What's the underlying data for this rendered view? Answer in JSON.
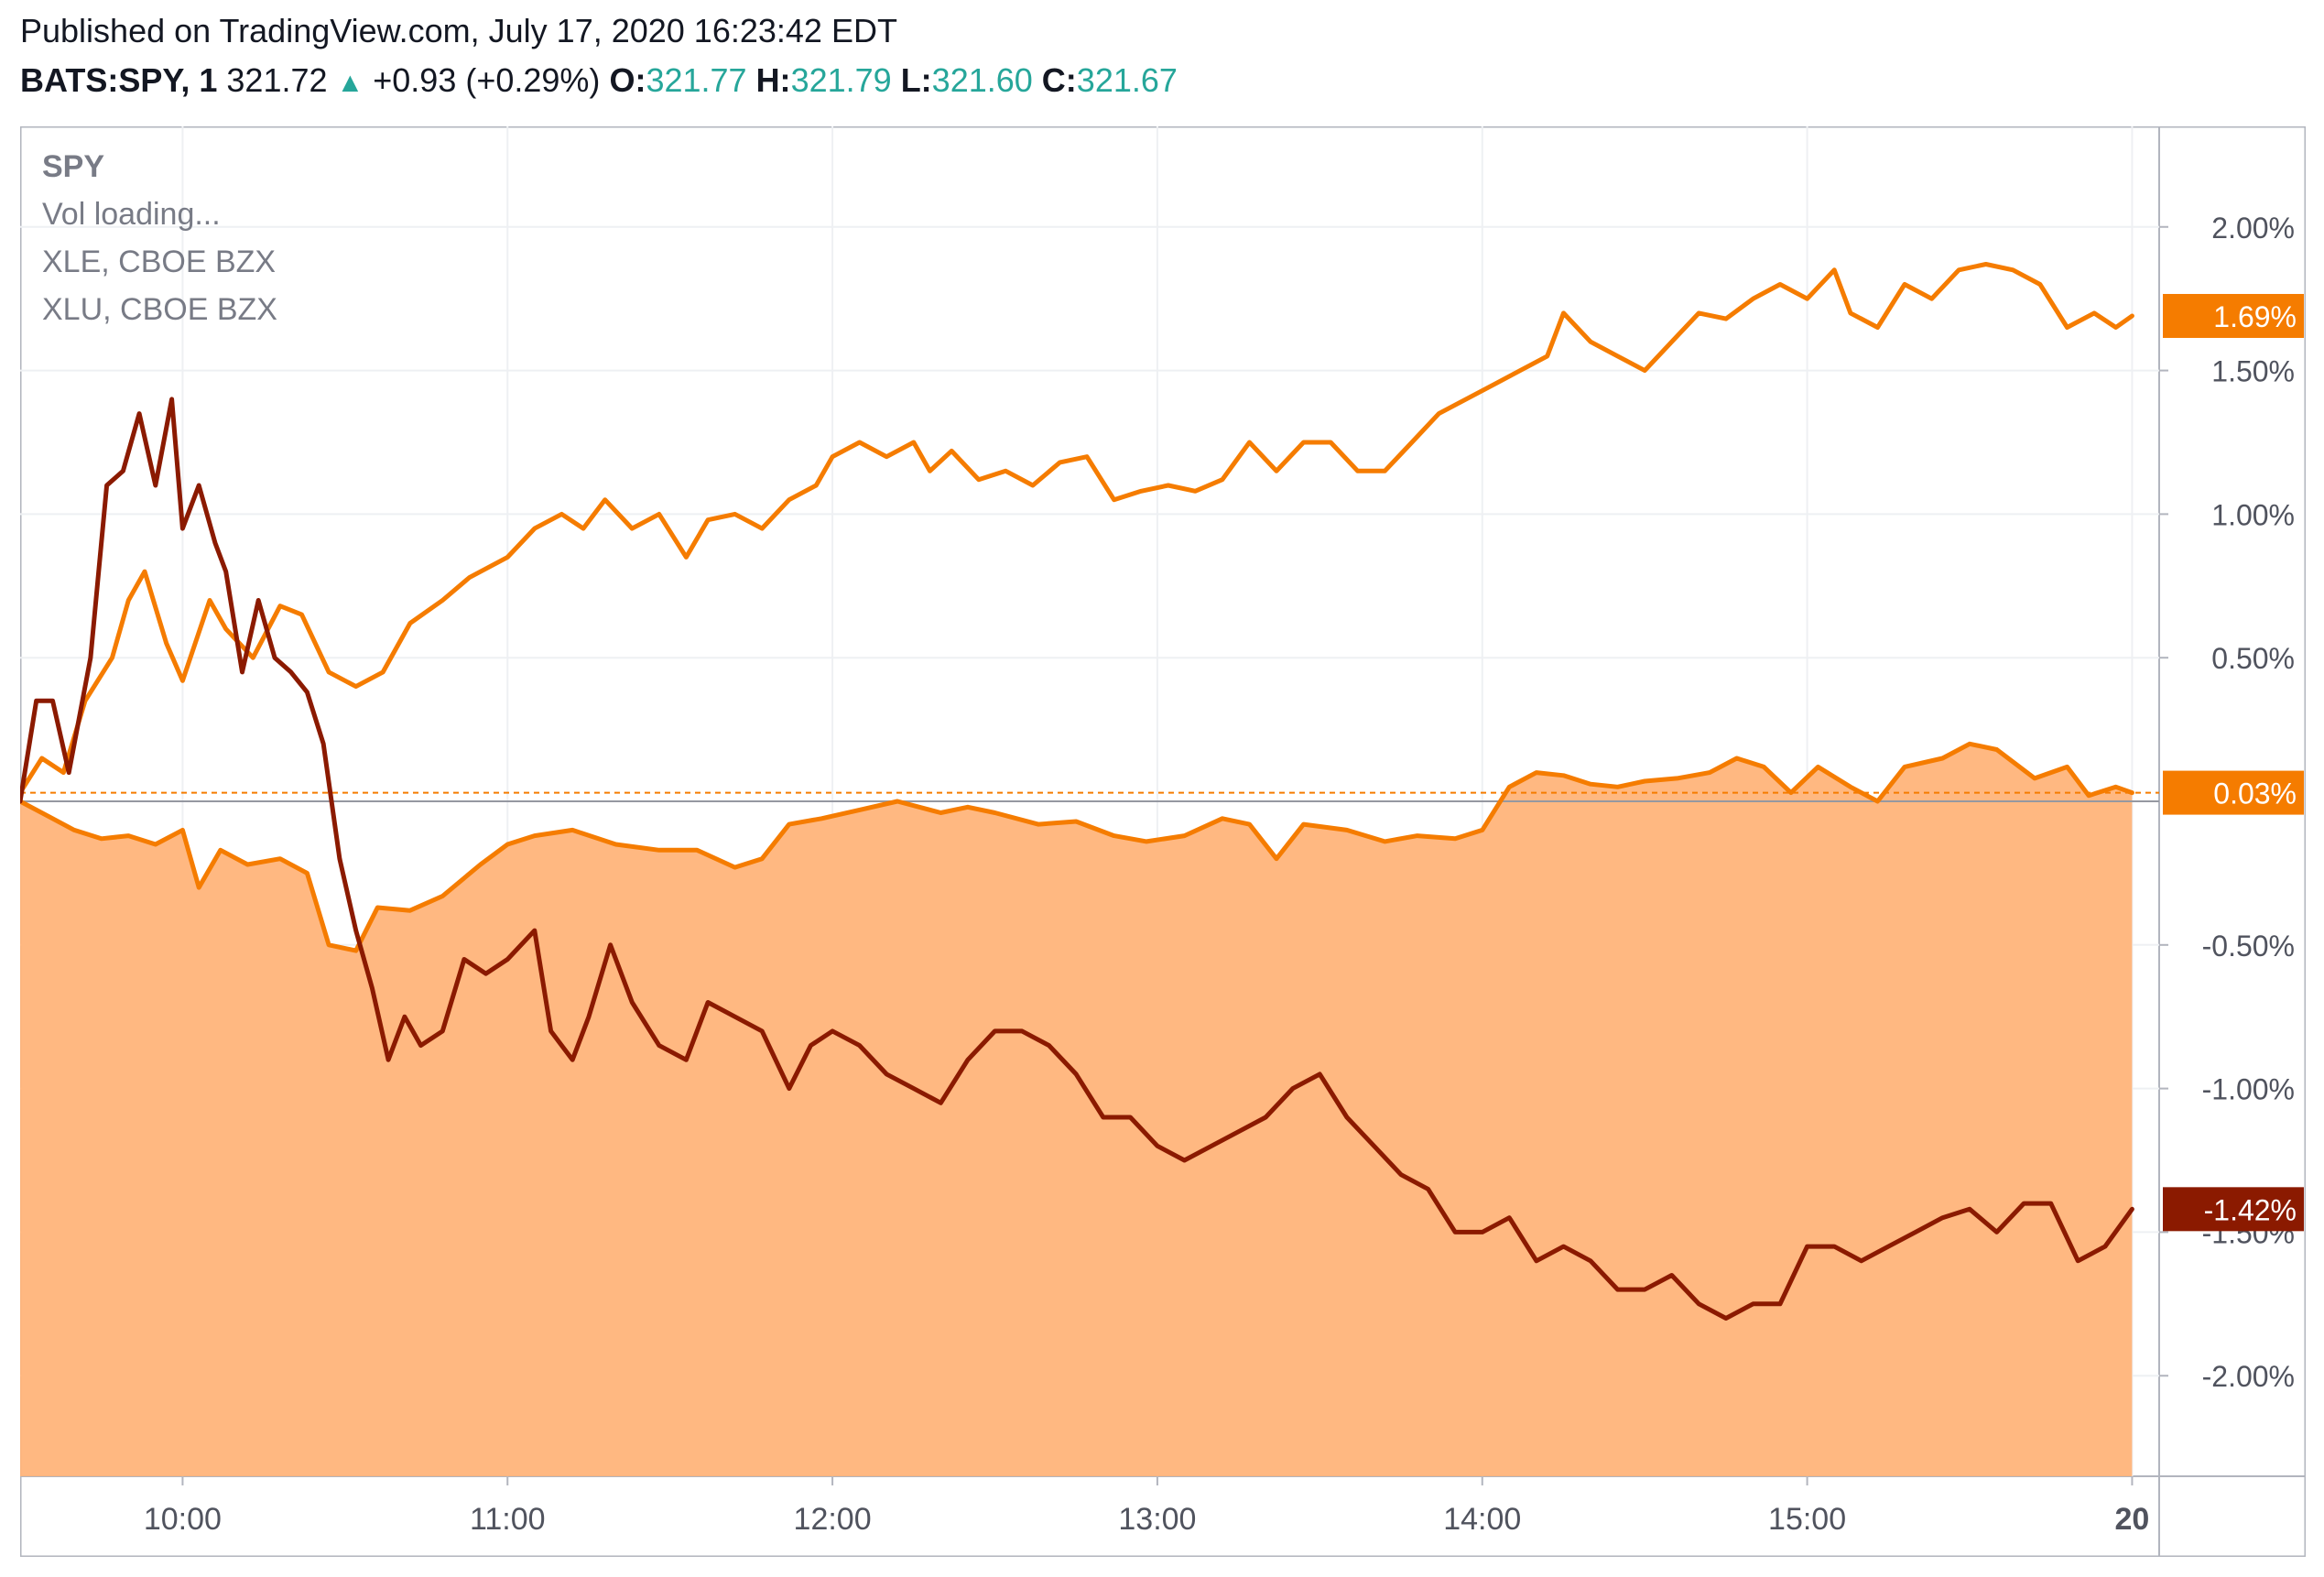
{
  "header": {
    "published": "Published on TradingView.com, July 17, 2020 16:23:42 EDT",
    "symbol": "BATS:SPY, 1",
    "last": "321.72",
    "change": "+0.93 (+0.29%)",
    "open_label": "O:",
    "open": "321.77",
    "high_label": "H:",
    "high": "321.79",
    "low_label": "L:",
    "low": "321.60",
    "close_label": "C:",
    "close": "321.67"
  },
  "legend": {
    "main": "SPY",
    "vol": "Vol loading...",
    "s2": "XLE, CBOE BZX",
    "s3": "XLU, CBOE BZX"
  },
  "colors": {
    "spy_line": "#f57c00",
    "spy_area": "#ffb47a",
    "xle_line": "#8b1a00",
    "xlu_line": "#c8601e",
    "xlu_upper_line": "#f57c00",
    "grid": "#eef0f3",
    "axis_text": "#50535e"
  },
  "chart_data": {
    "type": "line",
    "y_unit": "%",
    "ylim": [
      -2.35,
      2.35
    ],
    "yticks": [
      "2.00%",
      "1.50%",
      "1.00%",
      "0.50%",
      "-0.50%",
      "-1.00%",
      "-1.50%",
      "-2.00%"
    ],
    "ytick_values": [
      2.0,
      1.5,
      1.0,
      0.5,
      -0.5,
      -1.0,
      -1.5,
      -2.0
    ],
    "xlim": [
      "09:30",
      "16:05"
    ],
    "xticks": [
      "10:00",
      "11:00",
      "12:00",
      "13:00",
      "14:00",
      "15:00",
      "20"
    ],
    "xtick_times": [
      "10:00",
      "11:00",
      "12:00",
      "13:00",
      "14:00",
      "15:00",
      "16:00"
    ],
    "grid": true,
    "series": [
      {
        "name": "SPY",
        "style": "area",
        "last_label": "0.03%",
        "points": [
          [
            "09:30",
            0.0
          ],
          [
            "09:35",
            -0.05
          ],
          [
            "09:40",
            -0.1
          ],
          [
            "09:45",
            -0.13
          ],
          [
            "09:50",
            -0.12
          ],
          [
            "09:55",
            -0.15
          ],
          [
            "10:00",
            -0.1
          ],
          [
            "10:03",
            -0.3
          ],
          [
            "10:07",
            -0.17
          ],
          [
            "10:12",
            -0.22
          ],
          [
            "10:18",
            -0.2
          ],
          [
            "10:23",
            -0.25
          ],
          [
            "10:27",
            -0.5
          ],
          [
            "10:32",
            -0.52
          ],
          [
            "10:36",
            -0.37
          ],
          [
            "10:42",
            -0.38
          ],
          [
            "10:48",
            -0.33
          ],
          [
            "10:55",
            -0.22
          ],
          [
            "11:00",
            -0.15
          ],
          [
            "11:05",
            -0.12
          ],
          [
            "11:12",
            -0.1
          ],
          [
            "11:20",
            -0.15
          ],
          [
            "11:28",
            -0.17
          ],
          [
            "11:35",
            -0.17
          ],
          [
            "11:42",
            -0.23
          ],
          [
            "11:47",
            -0.2
          ],
          [
            "11:52",
            -0.08
          ],
          [
            "11:58",
            -0.06
          ],
          [
            "12:05",
            -0.03
          ],
          [
            "12:12",
            0.0
          ],
          [
            "12:20",
            -0.04
          ],
          [
            "12:25",
            -0.02
          ],
          [
            "12:30",
            -0.04
          ],
          [
            "12:38",
            -0.08
          ],
          [
            "12:45",
            -0.07
          ],
          [
            "12:52",
            -0.12
          ],
          [
            "12:58",
            -0.14
          ],
          [
            "13:05",
            -0.12
          ],
          [
            "13:12",
            -0.06
          ],
          [
            "13:17",
            -0.08
          ],
          [
            "13:22",
            -0.2
          ],
          [
            "13:27",
            -0.08
          ],
          [
            "13:35",
            -0.1
          ],
          [
            "13:42",
            -0.14
          ],
          [
            "13:48",
            -0.12
          ],
          [
            "13:55",
            -0.13
          ],
          [
            "14:00",
            -0.1
          ],
          [
            "14:05",
            0.05
          ],
          [
            "14:10",
            0.1
          ],
          [
            "14:15",
            0.09
          ],
          [
            "14:20",
            0.06
          ],
          [
            "14:25",
            0.05
          ],
          [
            "14:30",
            0.07
          ],
          [
            "14:36",
            0.08
          ],
          [
            "14:42",
            0.1
          ],
          [
            "14:47",
            0.15
          ],
          [
            "14:52",
            0.12
          ],
          [
            "14:57",
            0.03
          ],
          [
            "15:02",
            0.12
          ],
          [
            "15:08",
            0.05
          ],
          [
            "15:13",
            0.0
          ],
          [
            "15:18",
            0.12
          ],
          [
            "15:25",
            0.15
          ],
          [
            "15:30",
            0.2
          ],
          [
            "15:35",
            0.18
          ],
          [
            "15:42",
            0.08
          ],
          [
            "15:48",
            0.12
          ],
          [
            "15:52",
            0.02
          ],
          [
            "15:57",
            0.05
          ],
          [
            "16:00",
            0.03
          ]
        ]
      },
      {
        "name": "XLU",
        "style": "line",
        "last_label": "1.69%",
        "points": [
          [
            "09:30",
            0.03
          ],
          [
            "09:34",
            0.15
          ],
          [
            "09:38",
            0.1
          ],
          [
            "09:42",
            0.35
          ],
          [
            "09:47",
            0.5
          ],
          [
            "09:50",
            0.7
          ],
          [
            "09:53",
            0.8
          ],
          [
            "09:57",
            0.55
          ],
          [
            "10:00",
            0.42
          ],
          [
            "10:05",
            0.7
          ],
          [
            "10:08",
            0.6
          ],
          [
            "10:13",
            0.5
          ],
          [
            "10:18",
            0.68
          ],
          [
            "10:22",
            0.65
          ],
          [
            "10:27",
            0.45
          ],
          [
            "10:32",
            0.4
          ],
          [
            "10:37",
            0.45
          ],
          [
            "10:42",
            0.62
          ],
          [
            "10:48",
            0.7
          ],
          [
            "10:53",
            0.78
          ],
          [
            "11:00",
            0.85
          ],
          [
            "11:05",
            0.95
          ],
          [
            "11:10",
            1.0
          ],
          [
            "11:14",
            0.95
          ],
          [
            "11:18",
            1.05
          ],
          [
            "11:23",
            0.95
          ],
          [
            "11:28",
            1.0
          ],
          [
            "11:33",
            0.85
          ],
          [
            "11:37",
            0.98
          ],
          [
            "11:42",
            1.0
          ],
          [
            "11:47",
            0.95
          ],
          [
            "11:52",
            1.05
          ],
          [
            "11:57",
            1.1
          ],
          [
            "12:00",
            1.2
          ],
          [
            "12:05",
            1.25
          ],
          [
            "12:10",
            1.2
          ],
          [
            "12:15",
            1.25
          ],
          [
            "12:18",
            1.15
          ],
          [
            "12:22",
            1.22
          ],
          [
            "12:27",
            1.12
          ],
          [
            "12:32",
            1.15
          ],
          [
            "12:37",
            1.1
          ],
          [
            "12:42",
            1.18
          ],
          [
            "12:47",
            1.2
          ],
          [
            "12:52",
            1.05
          ],
          [
            "12:57",
            1.08
          ],
          [
            "13:02",
            1.1
          ],
          [
            "13:07",
            1.08
          ],
          [
            "13:12",
            1.12
          ],
          [
            "13:17",
            1.25
          ],
          [
            "13:22",
            1.15
          ],
          [
            "13:27",
            1.25
          ],
          [
            "13:32",
            1.25
          ],
          [
            "13:37",
            1.15
          ],
          [
            "13:42",
            1.15
          ],
          [
            "13:47",
            1.25
          ],
          [
            "13:52",
            1.35
          ],
          [
            "13:57",
            1.4
          ],
          [
            "14:02",
            1.45
          ],
          [
            "14:07",
            1.5
          ],
          [
            "14:12",
            1.55
          ],
          [
            "14:15",
            1.7
          ],
          [
            "14:20",
            1.6
          ],
          [
            "14:25",
            1.55
          ],
          [
            "14:30",
            1.5
          ],
          [
            "14:35",
            1.6
          ],
          [
            "14:40",
            1.7
          ],
          [
            "14:45",
            1.68
          ],
          [
            "14:50",
            1.75
          ],
          [
            "14:55",
            1.8
          ],
          [
            "15:00",
            1.75
          ],
          [
            "15:05",
            1.85
          ],
          [
            "15:08",
            1.7
          ],
          [
            "15:13",
            1.65
          ],
          [
            "15:18",
            1.8
          ],
          [
            "15:23",
            1.75
          ],
          [
            "15:28",
            1.85
          ],
          [
            "15:33",
            1.87
          ],
          [
            "15:38",
            1.85
          ],
          [
            "15:43",
            1.8
          ],
          [
            "15:48",
            1.65
          ],
          [
            "15:53",
            1.7
          ],
          [
            "15:57",
            1.65
          ],
          [
            "16:00",
            1.69
          ]
        ]
      },
      {
        "name": "XLE",
        "style": "line",
        "last_label": "-1.42%",
        "points": [
          [
            "09:30",
            0.0
          ],
          [
            "09:33",
            0.35
          ],
          [
            "09:36",
            0.35
          ],
          [
            "09:39",
            0.1
          ],
          [
            "09:43",
            0.5
          ],
          [
            "09:46",
            1.1
          ],
          [
            "09:49",
            1.15
          ],
          [
            "09:52",
            1.35
          ],
          [
            "09:55",
            1.1
          ],
          [
            "09:58",
            1.4
          ],
          [
            "10:00",
            0.95
          ],
          [
            "10:03",
            1.1
          ],
          [
            "10:06",
            0.9
          ],
          [
            "10:08",
            0.8
          ],
          [
            "10:11",
            0.45
          ],
          [
            "10:14",
            0.7
          ],
          [
            "10:17",
            0.5
          ],
          [
            "10:20",
            0.45
          ],
          [
            "10:23",
            0.38
          ],
          [
            "10:26",
            0.2
          ],
          [
            "10:29",
            -0.2
          ],
          [
            "10:32",
            -0.45
          ],
          [
            "10:35",
            -0.65
          ],
          [
            "10:38",
            -0.9
          ],
          [
            "10:41",
            -0.75
          ],
          [
            "10:44",
            -0.85
          ],
          [
            "10:48",
            -0.8
          ],
          [
            "10:52",
            -0.55
          ],
          [
            "10:56",
            -0.6
          ],
          [
            "11:00",
            -0.55
          ],
          [
            "11:05",
            -0.45
          ],
          [
            "11:08",
            -0.8
          ],
          [
            "11:12",
            -0.9
          ],
          [
            "11:15",
            -0.75
          ],
          [
            "11:19",
            -0.5
          ],
          [
            "11:23",
            -0.7
          ],
          [
            "11:28",
            -0.85
          ],
          [
            "11:33",
            -0.9
          ],
          [
            "11:37",
            -0.7
          ],
          [
            "11:42",
            -0.75
          ],
          [
            "11:47",
            -0.8
          ],
          [
            "11:52",
            -1.0
          ],
          [
            "11:56",
            -0.85
          ],
          [
            "12:00",
            -0.8
          ],
          [
            "12:05",
            -0.85
          ],
          [
            "12:10",
            -0.95
          ],
          [
            "12:15",
            -1.0
          ],
          [
            "12:20",
            -1.05
          ],
          [
            "12:25",
            -0.9
          ],
          [
            "12:30",
            -0.8
          ],
          [
            "12:35",
            -0.8
          ],
          [
            "12:40",
            -0.85
          ],
          [
            "12:45",
            -0.95
          ],
          [
            "12:50",
            -1.1
          ],
          [
            "12:55",
            -1.1
          ],
          [
            "13:00",
            -1.2
          ],
          [
            "13:05",
            -1.25
          ],
          [
            "13:10",
            -1.2
          ],
          [
            "13:15",
            -1.15
          ],
          [
            "13:20",
            -1.1
          ],
          [
            "13:25",
            -1.0
          ],
          [
            "13:30",
            -0.95
          ],
          [
            "13:35",
            -1.1
          ],
          [
            "13:40",
            -1.2
          ],
          [
            "13:45",
            -1.3
          ],
          [
            "13:50",
            -1.35
          ],
          [
            "13:55",
            -1.5
          ],
          [
            "14:00",
            -1.5
          ],
          [
            "14:05",
            -1.45
          ],
          [
            "14:10",
            -1.6
          ],
          [
            "14:15",
            -1.55
          ],
          [
            "14:20",
            -1.6
          ],
          [
            "14:25",
            -1.7
          ],
          [
            "14:30",
            -1.7
          ],
          [
            "14:35",
            -1.65
          ],
          [
            "14:40",
            -1.75
          ],
          [
            "14:45",
            -1.8
          ],
          [
            "14:50",
            -1.75
          ],
          [
            "14:55",
            -1.75
          ],
          [
            "15:00",
            -1.55
          ],
          [
            "15:05",
            -1.55
          ],
          [
            "15:10",
            -1.6
          ],
          [
            "15:15",
            -1.55
          ],
          [
            "15:20",
            -1.5
          ],
          [
            "15:25",
            -1.45
          ],
          [
            "15:30",
            -1.42
          ],
          [
            "15:35",
            -1.5
          ],
          [
            "15:40",
            -1.4
          ],
          [
            "15:45",
            -1.4
          ],
          [
            "15:50",
            -1.6
          ],
          [
            "15:55",
            -1.55
          ],
          [
            "16:00",
            -1.42
          ]
        ]
      }
    ]
  }
}
